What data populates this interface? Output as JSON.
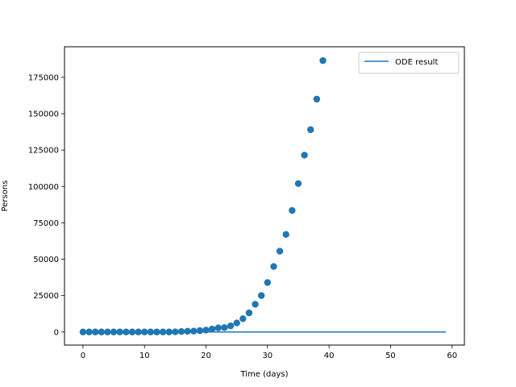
{
  "chart_data": {
    "type": "scatter",
    "title": "",
    "xlabel": "Time (days)",
    "ylabel": "Persons",
    "xlim": [
      -3,
      62
    ],
    "ylim": [
      -9000,
      196000
    ],
    "xticks": [
      0,
      10,
      20,
      30,
      40,
      50,
      60
    ],
    "yticks": [
      0,
      25000,
      50000,
      75000,
      100000,
      125000,
      150000,
      175000
    ],
    "grid": false,
    "legend_position": "top-right",
    "series": [
      {
        "name": "",
        "kind": "scatter",
        "color": "#1f77b4",
        "x": [
          0,
          1,
          2,
          3,
          4,
          5,
          6,
          7,
          8,
          9,
          10,
          11,
          12,
          13,
          14,
          15,
          16,
          17,
          18,
          19,
          20,
          21,
          22,
          23,
          24,
          25,
          26,
          27,
          28,
          29,
          30,
          31,
          32,
          33,
          34,
          35,
          36,
          37,
          38,
          39
        ],
        "y": [
          0,
          0,
          0,
          0,
          0,
          0,
          0,
          0,
          0,
          0,
          0,
          0,
          0,
          0,
          0,
          100,
          300,
          500,
          600,
          900,
          1300,
          2000,
          2800,
          3000,
          4200,
          6200,
          9100,
          13100,
          19000,
          25000,
          34000,
          45000,
          55500,
          67000,
          83500,
          102000,
          121500,
          139000,
          160000,
          186500
        ]
      },
      {
        "name": "ODE result",
        "kind": "line",
        "color": "#1f77b4",
        "x": [
          0,
          59
        ],
        "y": [
          0,
          0
        ]
      }
    ]
  }
}
